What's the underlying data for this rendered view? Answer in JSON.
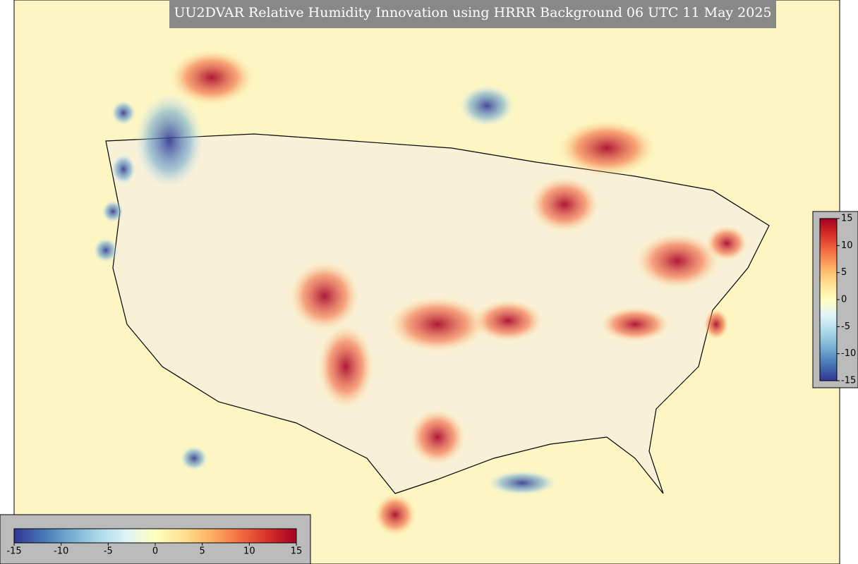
{
  "title": "UU2DVAR Relative Humidity Innovation using HRRR Background 06 UTC 11 May 2025",
  "colormap": [
    "#313695",
    "#4575b4",
    "#74add1",
    "#abd9e9",
    "#e0f3f8",
    "#ffffbf",
    "#fee090",
    "#fdae61",
    "#f46d43",
    "#d73027",
    "#a50026"
  ],
  "bottom_colorbar": {
    "range": [
      -15,
      15
    ],
    "ticks": [
      -15,
      -10,
      -5,
      0,
      5,
      10,
      15
    ]
  },
  "right_colorbar": {
    "range": [
      -15,
      15
    ],
    "ticks": [
      15,
      10,
      5,
      0,
      -5,
      -10,
      -15
    ]
  }
}
